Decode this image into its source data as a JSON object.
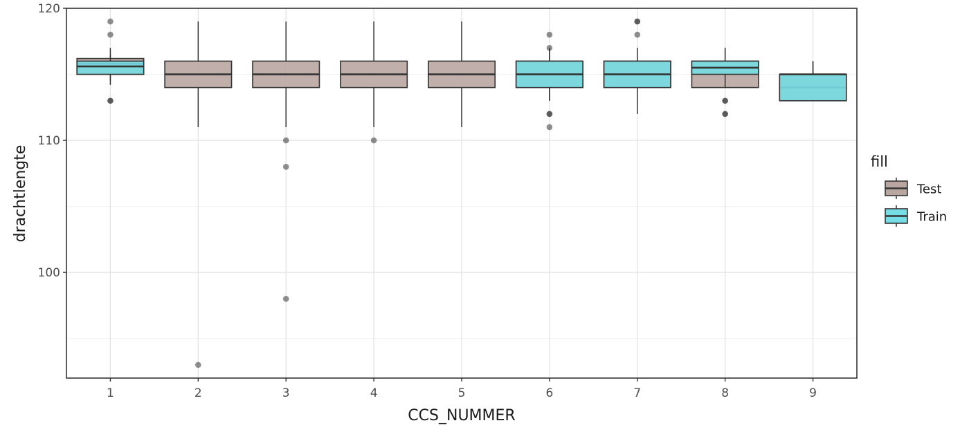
{
  "chart_data": {
    "type": "boxplot",
    "xlabel": "CCS_NUMMER",
    "ylabel": "drachtlengte",
    "categories": [
      "1",
      "2",
      "3",
      "4",
      "5",
      "6",
      "7",
      "8",
      "9"
    ],
    "ylim": [
      92,
      120
    ],
    "yticks": [
      100,
      110,
      120
    ],
    "grid": true,
    "legend": {
      "title": "fill",
      "position": "right",
      "entries": [
        "Test",
        "Train"
      ]
    },
    "colors": {
      "Test": "#b9a6a1",
      "Train": "#75dde3"
    },
    "series": [
      {
        "name": "Test",
        "boxes": [
          {
            "category": "1",
            "q1": 115,
            "median": 115.8,
            "q3": 116.2,
            "whisker_low": 114.2,
            "whisker_high": 117,
            "outliers": [
              113,
              118,
              119
            ]
          },
          {
            "category": "2",
            "q1": 114,
            "median": 115,
            "q3": 116,
            "whisker_low": 111,
            "whisker_high": 119,
            "outliers": [
              93
            ]
          },
          {
            "category": "3",
            "q1": 114,
            "median": 115,
            "q3": 116,
            "whisker_low": 111,
            "whisker_high": 119,
            "outliers": [
              110,
              108,
              98
            ]
          },
          {
            "category": "4",
            "q1": 114,
            "median": 115,
            "q3": 116,
            "whisker_low": 111,
            "whisker_high": 119,
            "outliers": [
              110
            ]
          },
          {
            "category": "5",
            "q1": 114,
            "median": 115,
            "q3": 116,
            "whisker_low": 111,
            "whisker_high": 119,
            "outliers": []
          },
          {
            "category": "6",
            "q1": 114,
            "median": 115,
            "q3": 116,
            "whisker_low": 113,
            "whisker_high": 117,
            "outliers": [
              112,
              111,
              118
            ]
          },
          {
            "category": "7",
            "q1": 114,
            "median": 115,
            "q3": 116,
            "whisker_low": 112,
            "whisker_high": 117,
            "outliers": [
              118,
              119
            ]
          },
          {
            "category": "8",
            "q1": 114,
            "median": 115.5,
            "q3": 116,
            "whisker_low": 114,
            "whisker_high": 117,
            "outliers": [
              113,
              112
            ]
          },
          {
            "category": "9",
            "q1": 113,
            "median": 114,
            "q3": 115,
            "whisker_low": 113,
            "whisker_high": 116,
            "outliers": []
          }
        ]
      },
      {
        "name": "Train",
        "boxes": [
          {
            "category": "1",
            "q1": 115,
            "median": 115.6,
            "q3": 116,
            "whisker_low": 114.5,
            "whisker_high": 116.5,
            "outliers": [
              113
            ]
          },
          {
            "category": "6",
            "q1": 114,
            "median": 115,
            "q3": 116,
            "whisker_low": 113,
            "whisker_high": 117,
            "outliers": [
              117,
              112
            ]
          },
          {
            "category": "7",
            "q1": 114,
            "median": 115,
            "q3": 116,
            "whisker_low": 113,
            "whisker_high": 117,
            "outliers": [
              119
            ]
          },
          {
            "category": "8",
            "q1": 115,
            "median": 115.5,
            "q3": 116,
            "whisker_low": 114,
            "whisker_high": 117,
            "outliers": [
              113,
              112
            ]
          },
          {
            "category": "9",
            "q1": 113,
            "median": 115,
            "q3": 115,
            "whisker_low": 113,
            "whisker_high": 116,
            "outliers": []
          }
        ]
      }
    ]
  }
}
